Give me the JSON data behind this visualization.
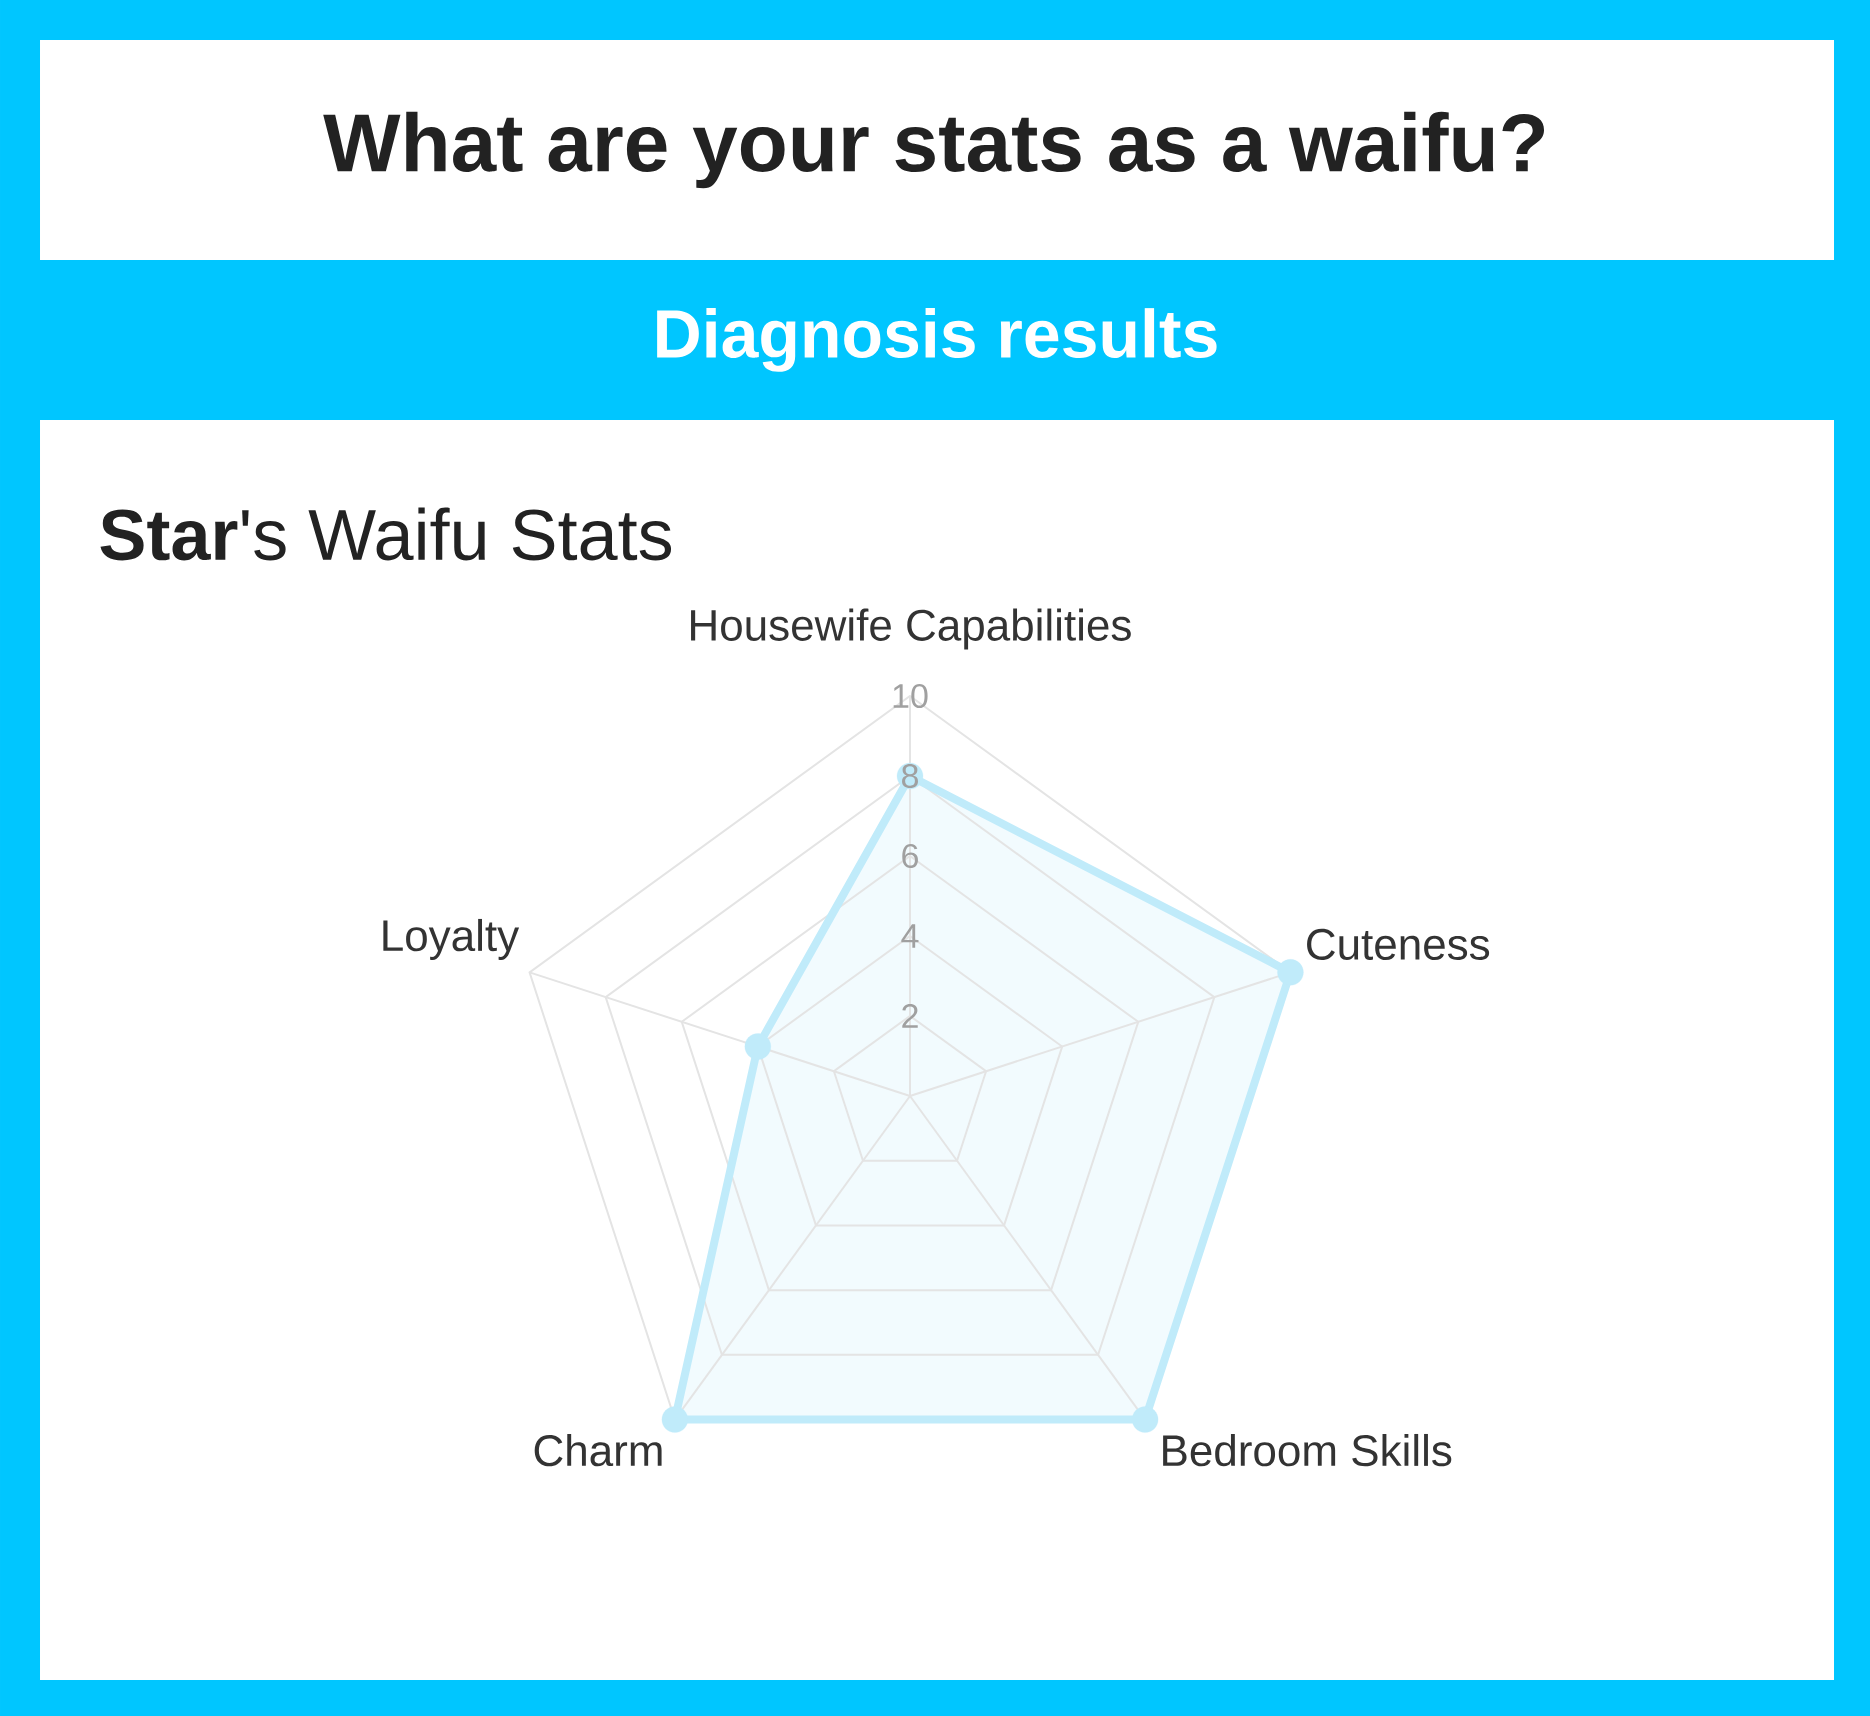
{
  "chart_data": {
    "type": "radar",
    "title": "What are your stats as a waifu?",
    "subtitle": "Diagnosis results",
    "annotations": [
      "**Star**'s Waifu Stats"
    ],
    "categories": [
      "Housewife Capabilities",
      "Cuteness",
      "Bedroom Skills",
      "Charm",
      "Loyalty"
    ],
    "series": [
      {
        "color": "#c0ebfa",
        "values": [
          8,
          10,
          10,
          10,
          4
        ]
      }
    ],
    "ylim": [
      0,
      10
    ],
    "yticks": [
      2,
      4,
      6,
      8,
      10
    ],
    "grid": true,
    "marker": "circle"
  }
}
